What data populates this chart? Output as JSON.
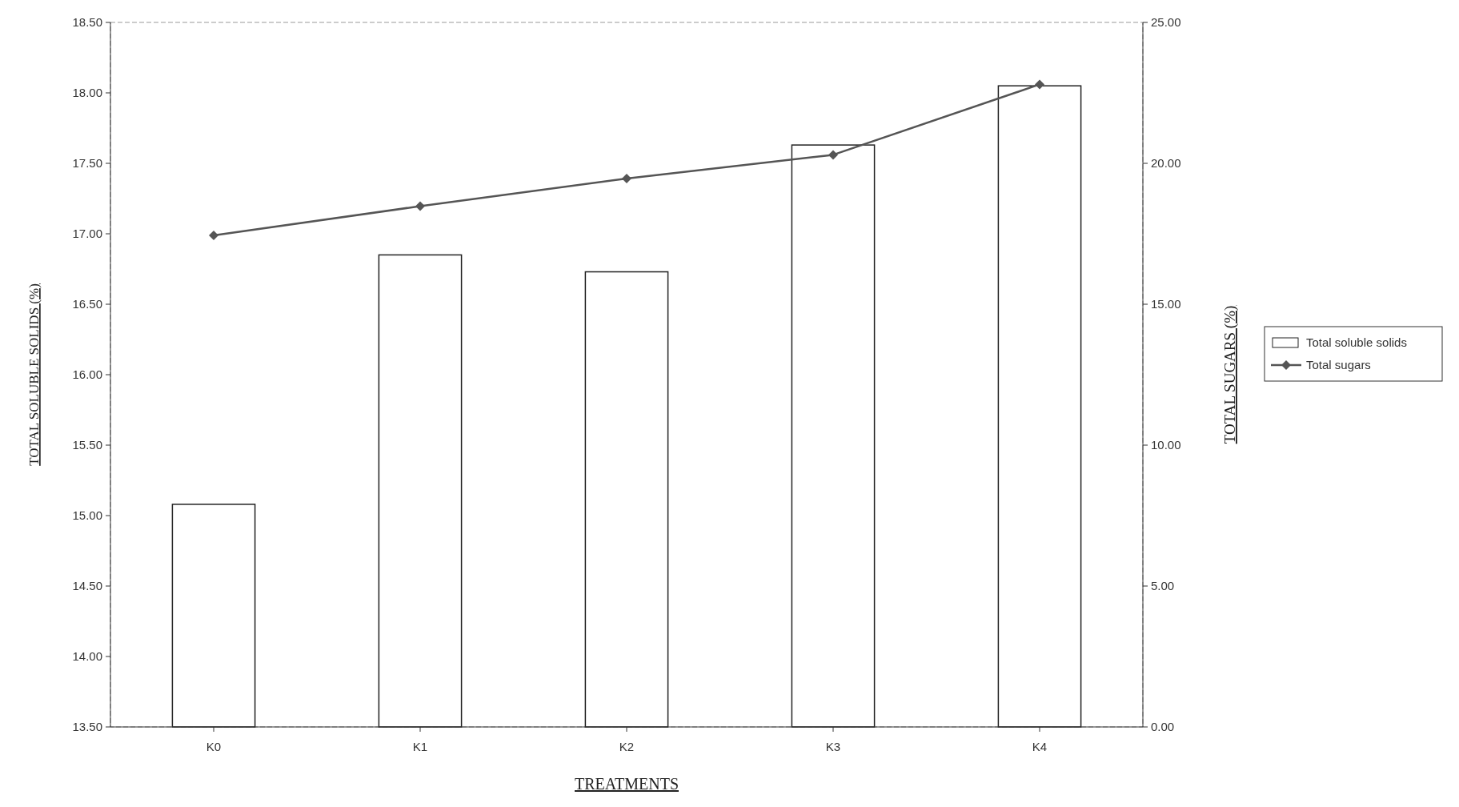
{
  "chart_data": {
    "type": "bar",
    "xlabel": "TREATMENTS",
    "ylabel": "TOTAL SOLUBLE SOLIDS (%)",
    "y2label": "TOTAL SUGARS (%)",
    "categories": [
      "K0",
      "K1",
      "K2",
      "K3",
      "K4"
    ],
    "series": [
      {
        "name": "Total soluble solids",
        "color": "#ffffff",
        "values": [
          15.08,
          16.85,
          16.73,
          17.63,
          18.05
        ]
      },
      {
        "name": "Total sugars",
        "type": "line",
        "axis": "y2",
        "color": "#555555",
        "marker": "diamond",
        "values": [
          17.44,
          18.48,
          19.46,
          20.3,
          22.8
        ]
      }
    ],
    "ylim": [
      13.5,
      18.5
    ],
    "yticks": [
      {
        "value": 13.5,
        "label": "13.50"
      },
      {
        "value": 14,
        "label": "14.00"
      },
      {
        "value": 14.5,
        "label": "14.50"
      },
      {
        "value": 15,
        "label": "15.00"
      },
      {
        "value": 15.5,
        "label": "15.50"
      },
      {
        "value": 16,
        "label": "16.00"
      },
      {
        "value": 16.5,
        "label": "16.50"
      },
      {
        "value": 17,
        "label": "17.00"
      },
      {
        "value": 17.5,
        "label": "17.50"
      },
      {
        "value": 18,
        "label": "18.00"
      },
      {
        "value": 18.5,
        "label": "18.50"
      }
    ],
    "y2lim": [
      0,
      25
    ],
    "y2ticks": [
      {
        "value": 0,
        "label": "0.00"
      },
      {
        "value": 5,
        "label": "5.00"
      },
      {
        "value": 10,
        "label": "10.00"
      },
      {
        "value": 15,
        "label": "15.00"
      },
      {
        "value": 20,
        "label": "20.00"
      },
      {
        "value": 25,
        "label": "25.00"
      }
    ],
    "legend": "right"
  }
}
